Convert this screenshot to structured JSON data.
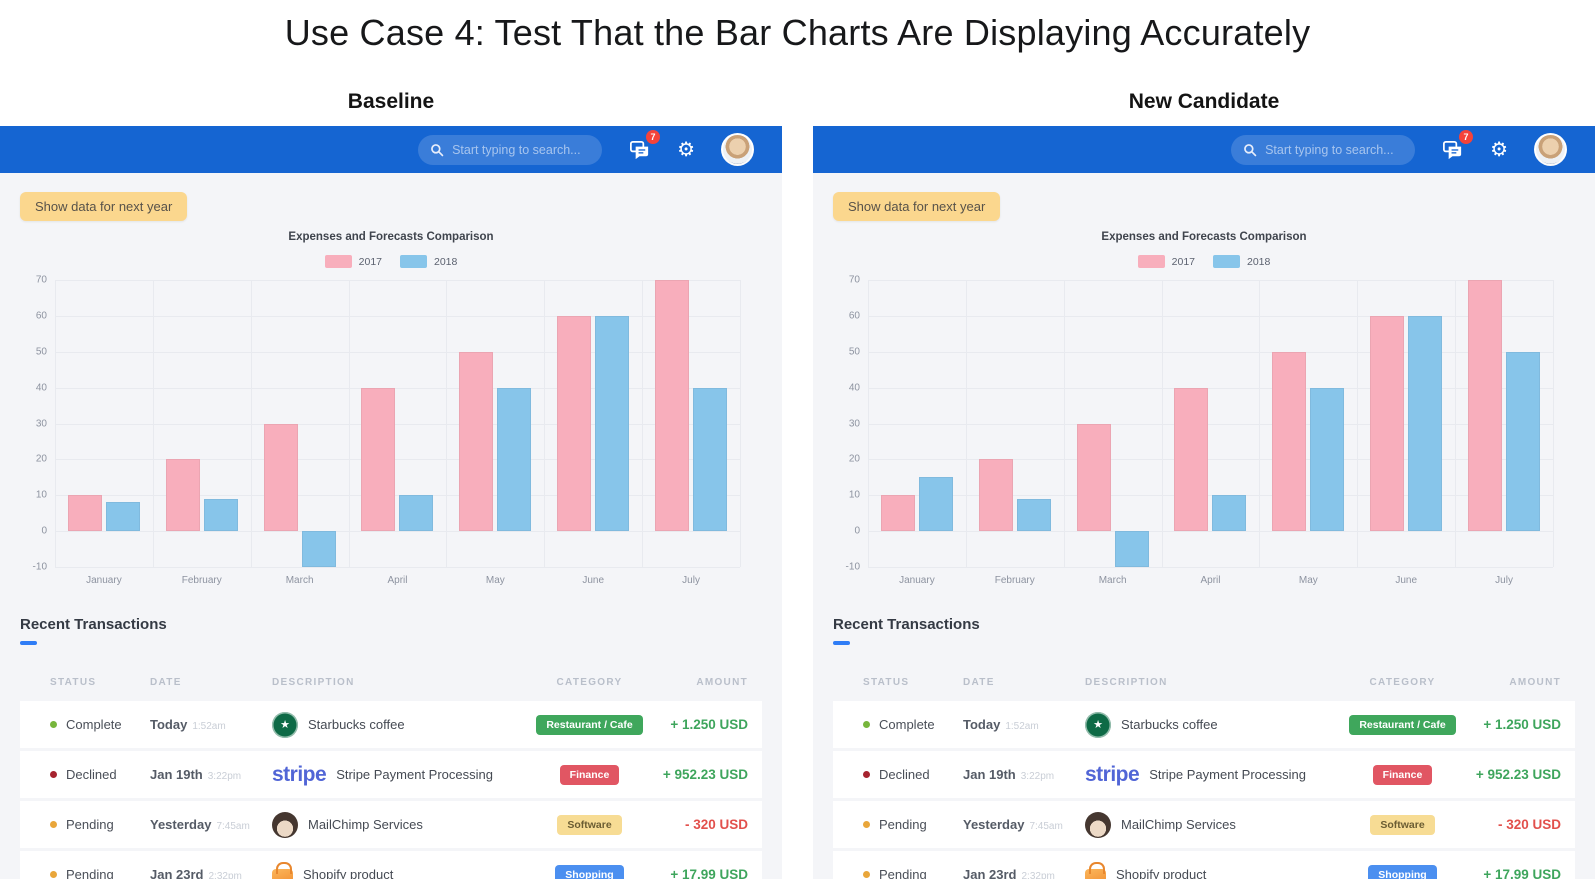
{
  "page_title": "Use Case 4: Test That the Bar Charts Are Displaying Accurately",
  "panels": [
    {
      "label": "Baseline"
    },
    {
      "label": "New Candidate"
    }
  ],
  "dashboard": {
    "search_placeholder": "Start typing to search...",
    "notification_badge": "7",
    "show_data_button": "Show data for next year"
  },
  "chart_data": [
    {
      "type": "bar",
      "title": "Expenses and Forecasts Comparison",
      "categories": [
        "January",
        "February",
        "March",
        "April",
        "May",
        "June",
        "July"
      ],
      "series": [
        {
          "name": "2017",
          "color": "#f8aebc",
          "values": [
            10,
            20,
            30,
            40,
            50,
            60,
            70
          ]
        },
        {
          "name": "2018",
          "color": "#87c5ea",
          "values": [
            8,
            9,
            -10,
            10,
            40,
            60,
            40
          ]
        }
      ],
      "xlabel": "",
      "ylabel": "",
      "ylim": [
        -10,
        70
      ],
      "ystep": 10,
      "grid": true,
      "legend_position": "top"
    },
    {
      "type": "bar",
      "title": "Expenses and Forecasts Comparison",
      "categories": [
        "January",
        "February",
        "March",
        "April",
        "May",
        "June",
        "July"
      ],
      "series": [
        {
          "name": "2017",
          "color": "#f8aebc",
          "values": [
            10,
            20,
            30,
            40,
            50,
            60,
            70
          ]
        },
        {
          "name": "2018",
          "color": "#87c5ea",
          "values": [
            15,
            9,
            -10,
            10,
            40,
            60,
            50
          ]
        }
      ],
      "xlabel": "",
      "ylabel": "",
      "ylim": [
        -10,
        70
      ],
      "ystep": 10,
      "grid": true,
      "legend_position": "top"
    }
  ],
  "transactions": {
    "section_title": "Recent Transactions",
    "columns": [
      "STATUS",
      "DATE",
      "DESCRIPTION",
      "CATEGORY",
      "AMOUNT"
    ],
    "rows": [
      {
        "status": {
          "label": "Complete",
          "color": "#77b63c"
        },
        "date": {
          "day": "Today",
          "time": "1:52am"
        },
        "description": {
          "icon": "starbucks-icon",
          "text": "Starbucks coffee"
        },
        "category": {
          "label": "Restaurant / Cafe",
          "bg": "#3fa75c",
          "text_color": "#ffffff"
        },
        "amount": {
          "text": "+ 1.250 USD",
          "color": "#3ea55c"
        }
      },
      {
        "status": {
          "label": "Declined",
          "color": "#a6232f"
        },
        "date": {
          "day": "Jan 19th",
          "time": "3:22pm"
        },
        "description": {
          "icon": "stripe-logo",
          "brand": "stripe",
          "text": "Stripe Payment Processing"
        },
        "category": {
          "label": "Finance",
          "bg": "#e15663",
          "text_color": "#ffffff"
        },
        "amount": {
          "text": "+ 952.23 USD",
          "color": "#3ea55c"
        }
      },
      {
        "status": {
          "label": "Pending",
          "color": "#e9a63a"
        },
        "date": {
          "day": "Yesterday",
          "time": "7:45am"
        },
        "description": {
          "icon": "mailchimp-icon",
          "text": "MailChimp Services"
        },
        "category": {
          "label": "Software",
          "bg": "#f7dc94",
          "text_color": "#6b5d33"
        },
        "amount": {
          "text": "- 320 USD",
          "color": "#e2504c"
        }
      },
      {
        "status": {
          "label": "Pending",
          "color": "#e9a63a"
        },
        "date": {
          "day": "Jan 23rd",
          "time": "2:32pm"
        },
        "description": {
          "icon": "shopify-icon",
          "text": "Shopify product"
        },
        "category": {
          "label": "Shopping",
          "bg": "#4b8ff0",
          "text_color": "#ffffff"
        },
        "amount": {
          "text": "+ 17.99 USD",
          "color": "#3ea55c"
        }
      }
    ]
  },
  "colors": {
    "header_bar": "#1565d2",
    "panel_bg": "#f4f5f8",
    "page_bg": "#ffffff",
    "accent": "#2f7df6",
    "button_bg": "#fbd78e",
    "button_text": "#57524a",
    "positive_amount": "#3ea55c",
    "negative_amount": "#e2504c"
  }
}
